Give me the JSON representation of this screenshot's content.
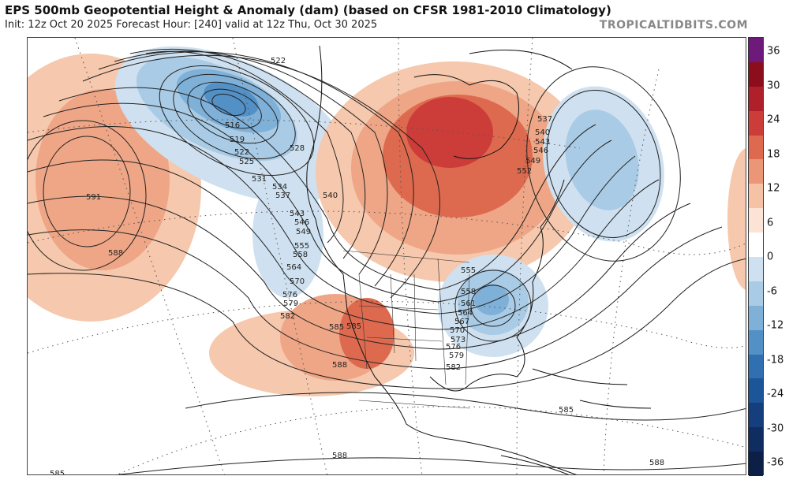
{
  "header": {
    "title": "EPS 500mb Geopotential Height & Anomaly (dam) (based on CFSR 1981-2010 Climatology)",
    "subtitle": "Init: 12z Oct 20 2025   Forecast Hour: [240]   valid at 12z Thu, Oct 30 2025",
    "brand": "TROPICALTIDBITS.COM"
  },
  "colorbar": {
    "ticks": [
      "36",
      "30",
      "24",
      "18",
      "12",
      "6",
      "0",
      "-6",
      "-12",
      "-18",
      "-24",
      "-30",
      "-36"
    ],
    "colors": [
      "#6d1a7a",
      "#8c0d1c",
      "#b0202a",
      "#cc3d3a",
      "#dd6a4e",
      "#eb9677",
      "#f5c2a6",
      "#fbe4d6",
      "#ffffff",
      "#cfe1f0",
      "#a9cbe5",
      "#7fb0d8",
      "#5290c6",
      "#3070b0",
      "#1c5598",
      "#153f7c",
      "#0f2d60",
      "#0b1f47"
    ]
  },
  "map": {
    "contour_labels": [
      "516",
      "519",
      "522",
      "525",
      "528",
      "531",
      "534",
      "537",
      "540",
      "543",
      "546",
      "549",
      "552",
      "555",
      "558",
      "561",
      "564",
      "567",
      "570",
      "573",
      "576",
      "579",
      "582",
      "585",
      "588",
      "591"
    ],
    "placed_labels": [
      {
        "text": "522",
        "value": 522
      },
      {
        "text": "516",
        "value": 516
      },
      {
        "text": "519",
        "value": 519
      },
      {
        "text": "522",
        "value": 522
      },
      {
        "text": "525",
        "value": 525
      },
      {
        "text": "528",
        "value": 528
      },
      {
        "text": "531",
        "value": 531
      },
      {
        "text": "534",
        "value": 534
      },
      {
        "text": "537",
        "value": 537
      },
      {
        "text": "540",
        "value": 540
      },
      {
        "text": "543",
        "value": 543
      },
      {
        "text": "546",
        "value": 546
      },
      {
        "text": "549",
        "value": 549
      },
      {
        "text": "555",
        "value": 555
      },
      {
        "text": "558",
        "value": 558
      },
      {
        "text": "564",
        "value": 564
      },
      {
        "text": "570",
        "value": 570
      },
      {
        "text": "576",
        "value": 576
      },
      {
        "text": "579",
        "value": 579
      },
      {
        "text": "582",
        "value": 582
      },
      {
        "text": "585",
        "value": 585
      },
      {
        "text": "588",
        "value": 588
      },
      {
        "text": "591",
        "value": 591
      },
      {
        "text": "588",
        "value": 588
      },
      {
        "text": "537",
        "value": 537
      },
      {
        "text": "540",
        "value": 540
      },
      {
        "text": "543",
        "value": 543
      },
      {
        "text": "546",
        "value": 546
      },
      {
        "text": "549",
        "value": 549
      },
      {
        "text": "552",
        "value": 552
      },
      {
        "text": "555",
        "value": 555
      },
      {
        "text": "558",
        "value": 558
      },
      {
        "text": "561",
        "value": 561
      },
      {
        "text": "564",
        "value": 564
      },
      {
        "text": "567",
        "value": 567
      },
      {
        "text": "570",
        "value": 570
      },
      {
        "text": "573",
        "value": 573
      },
      {
        "text": "576",
        "value": 576
      },
      {
        "text": "579",
        "value": 579
      },
      {
        "text": "582",
        "value": 582
      },
      {
        "text": "585",
        "value": 585
      },
      {
        "text": "588",
        "value": 588
      },
      {
        "text": "585",
        "value": 585
      },
      {
        "text": "588",
        "value": 588
      },
      {
        "text": "585",
        "value": 585
      }
    ],
    "features": {
      "west_trough_anomaly": "negative",
      "greenland_ridge_anomaly": "positive",
      "east_us_trough_anomaly": "negative",
      "north_atlantic_trough_anomaly": "negative",
      "pacific_ridge_anomaly": "positive",
      "southwest_ridge_anomaly": "positive"
    }
  }
}
